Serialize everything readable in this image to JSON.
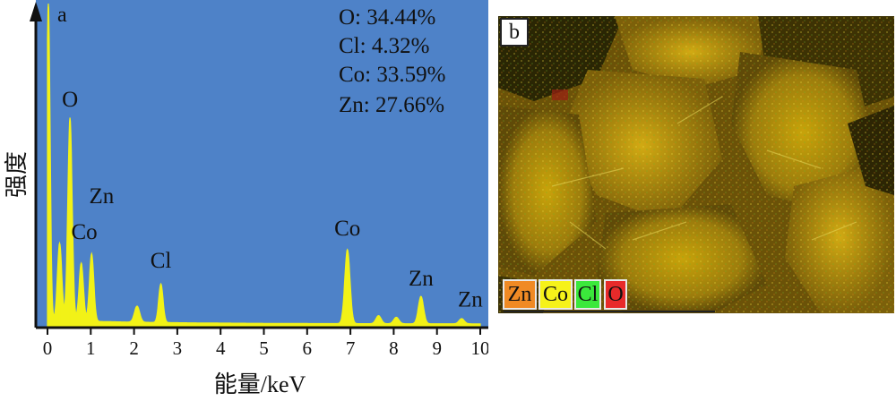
{
  "chart_data": {
    "type": "line",
    "panel_label": "a",
    "xlabel": "能量/keV",
    "ylabel": "强度",
    "xlim": [
      0,
      10
    ],
    "ylim": [
      0,
      100
    ],
    "x_ticks": [
      "0",
      "1",
      "2",
      "3",
      "4",
      "5",
      "6",
      "7",
      "8",
      "9",
      "10"
    ],
    "series": [
      {
        "peaks": [
          {
            "x": 0.02,
            "y": 99,
            "w": 0.04
          },
          {
            "x": 0.28,
            "y": 24,
            "w": 0.05
          },
          {
            "x": 0.52,
            "y": 63,
            "w": 0.05
          },
          {
            "x": 0.78,
            "y": 18,
            "w": 0.05
          },
          {
            "x": 1.02,
            "y": 21,
            "w": 0.05
          },
          {
            "x": 2.07,
            "y": 5,
            "w": 0.06
          },
          {
            "x": 2.62,
            "y": 12,
            "w": 0.05
          },
          {
            "x": 6.93,
            "y": 23,
            "w": 0.06
          },
          {
            "x": 7.65,
            "y": 2.5,
            "w": 0.06
          },
          {
            "x": 8.06,
            "y": 2.0,
            "w": 0.06
          },
          {
            "x": 8.63,
            "y": 8.5,
            "w": 0.06
          },
          {
            "x": 9.57,
            "y": 1.6,
            "w": 0.06
          }
        ]
      }
    ],
    "peak_labels": [
      {
        "text": "O",
        "x": 0.52,
        "y": 68
      },
      {
        "text": "Zn",
        "x": 1.25,
        "y": 38
      },
      {
        "text": "Co",
        "x": 0.85,
        "y": 27
      },
      {
        "text": "Cl",
        "x": 2.62,
        "y": 18
      },
      {
        "text": "Co",
        "x": 6.93,
        "y": 28
      },
      {
        "text": "Zn",
        "x": 8.63,
        "y": 12.5
      },
      {
        "text": "Zn",
        "x": 9.77,
        "y": 6
      }
    ],
    "composition": [
      "O: 34.44%",
      "Cl: 4.32%",
      "Co: 33.59%",
      "Zn: 27.66%"
    ],
    "colors": {
      "background": "#4e82c8",
      "trace": "#f2f217",
      "axis": "#111111"
    }
  },
  "map_panel": {
    "panel_label": "b",
    "legend": [
      {
        "label": "Zn",
        "color": "#f08a24"
      },
      {
        "label": "Co",
        "color": "#f6f21a"
      },
      {
        "label": "Cl",
        "color": "#3be83b"
      },
      {
        "label": "O",
        "color": "#e82a2a"
      }
    ]
  }
}
